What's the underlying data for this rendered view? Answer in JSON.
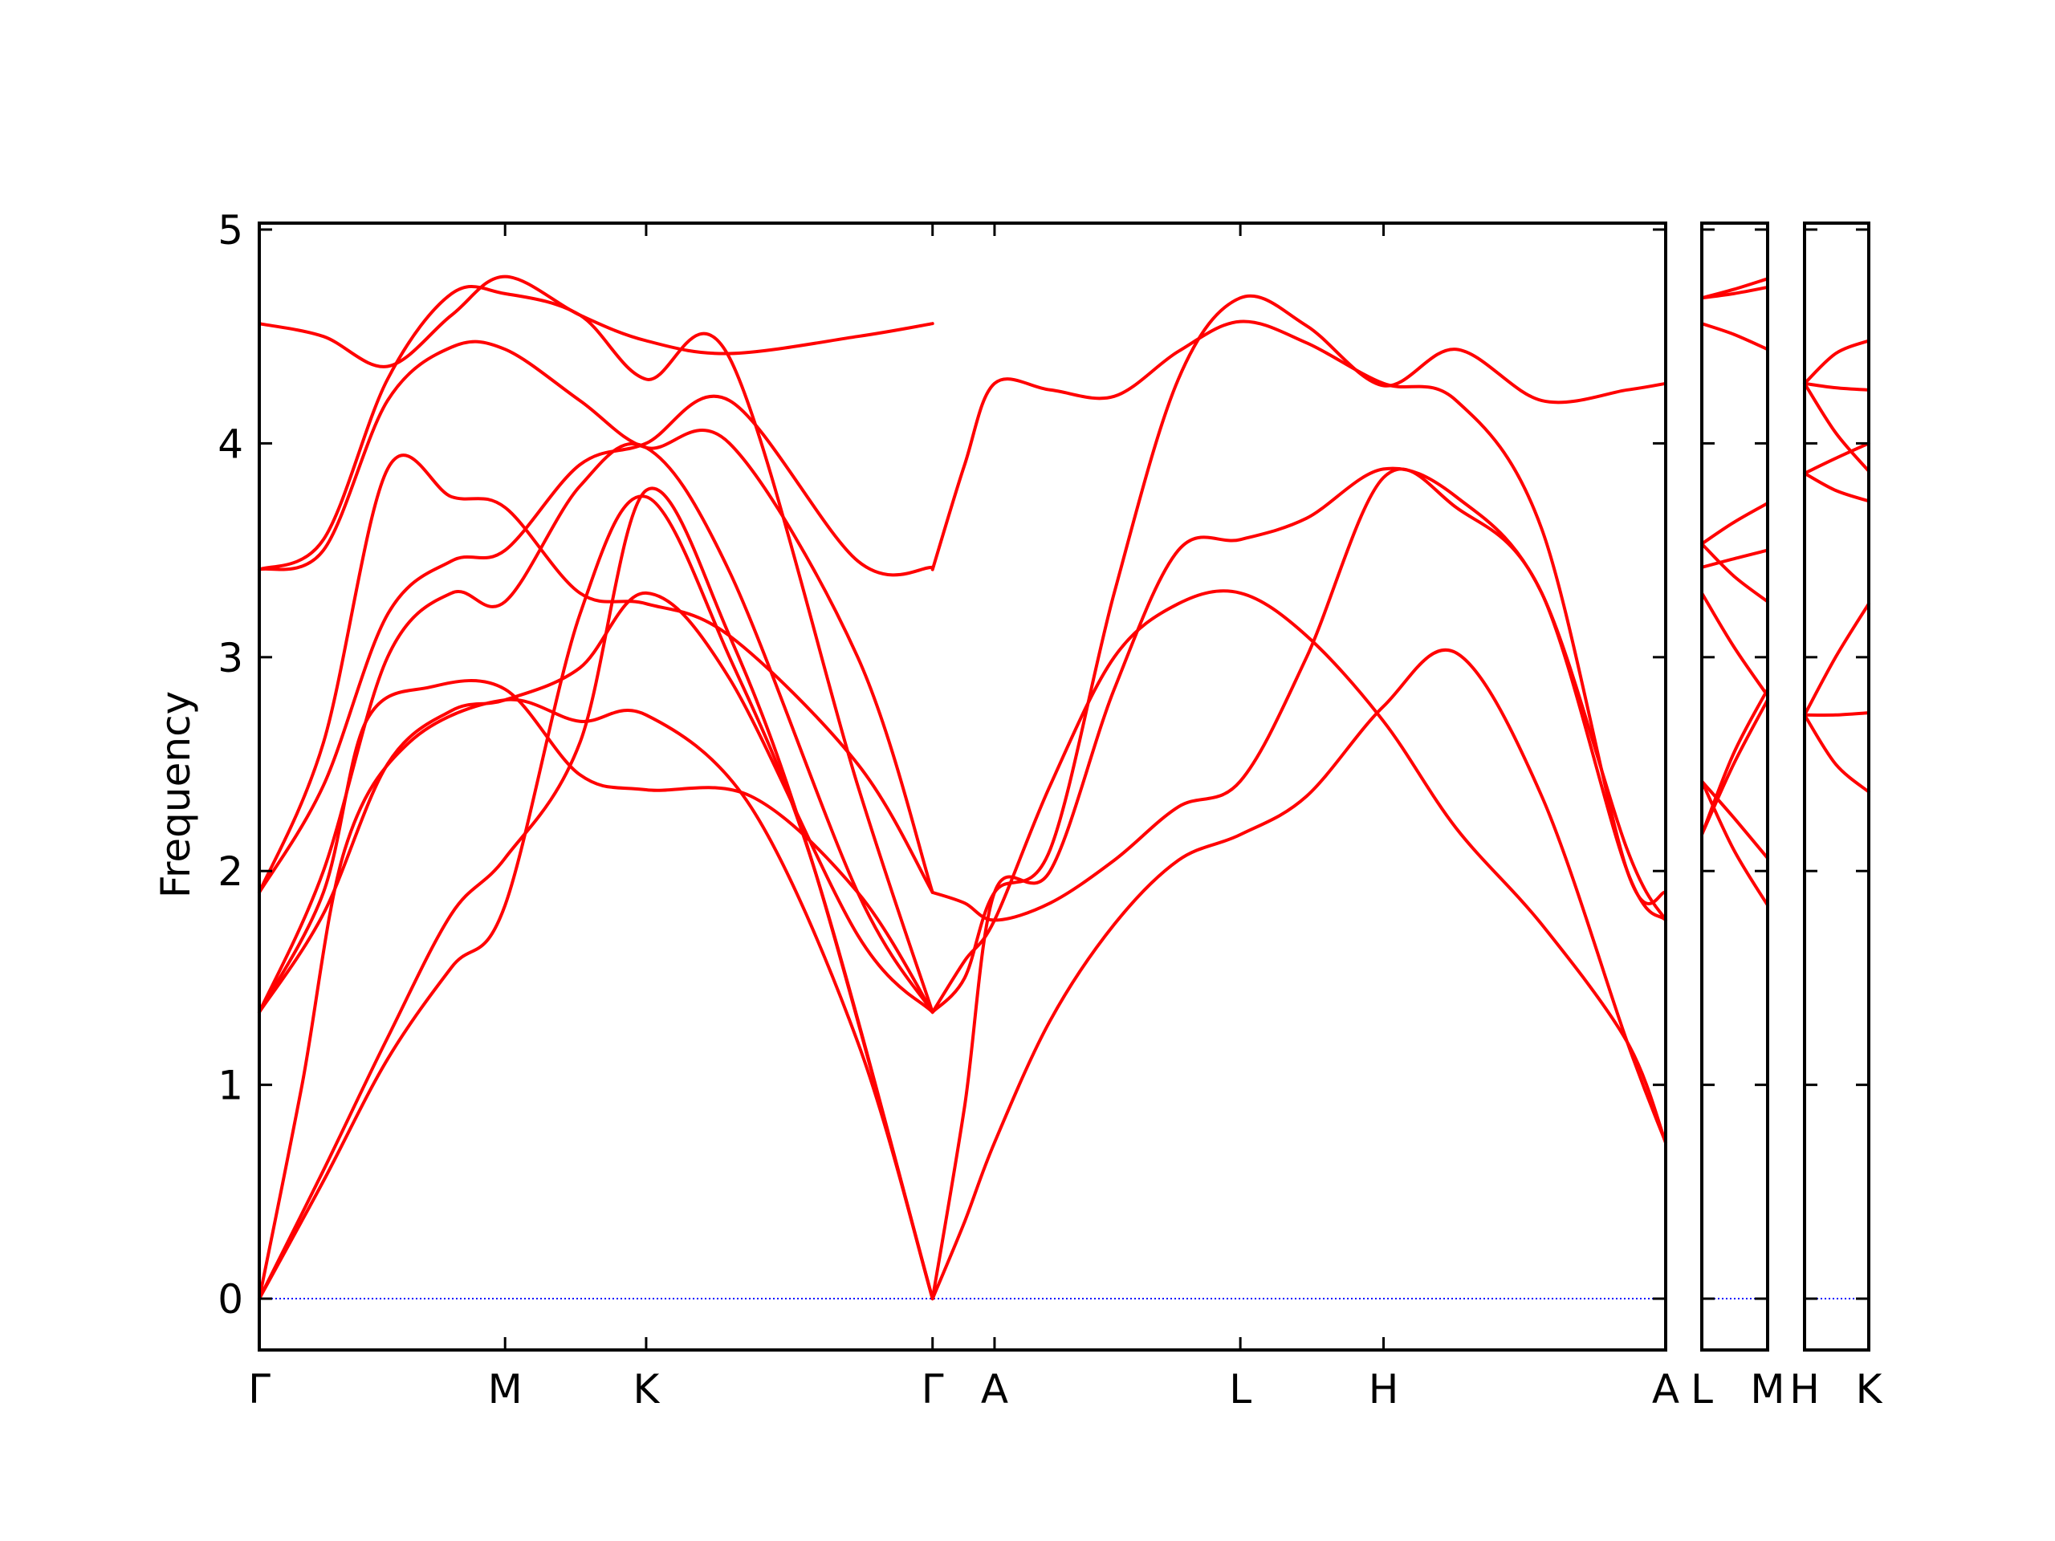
{
  "chart_data": {
    "type": "line",
    "ylabel": "Frequency",
    "ylim": [
      -0.24,
      5.03
    ],
    "grid": false,
    "y_ticks": [
      "0",
      "1",
      "2",
      "3",
      "4",
      "5"
    ],
    "zero_line_color": "#0000ff",
    "band_color": "#ff0000",
    "panels": [
      {
        "x_range": [
          0,
          6.58
        ],
        "ticks": [
          {
            "x": 0.0,
            "label": "Γ"
          },
          {
            "x": 1.15,
            "label": "M"
          },
          {
            "x": 1.81,
            "label": "K"
          },
          {
            "x": 3.15,
            "label": "Γ"
          },
          {
            "x": 3.44,
            "label": "A"
          },
          {
            "x": 4.59,
            "label": "L"
          },
          {
            "x": 5.26,
            "label": "H"
          },
          {
            "x": 6.58,
            "label": "A"
          }
        ],
        "bands": [
          [
            [
              0,
              0
            ],
            [
              0.3,
              0.55
            ],
            [
              0.6,
              1.12
            ],
            [
              0.9,
              1.55
            ],
            [
              1.15,
              1.84
            ],
            [
              1.5,
              3.2
            ],
            [
              1.81,
              3.75
            ],
            [
              2.2,
              3.0
            ],
            [
              2.6,
              2.0
            ],
            [
              3.15,
              0.0
            ]
          ],
          [
            [
              0,
              0
            ],
            [
              0.3,
              0.6
            ],
            [
              0.6,
              1.22
            ],
            [
              0.9,
              1.8
            ],
            [
              1.15,
              2.06
            ],
            [
              1.5,
              2.6
            ],
            [
              1.81,
              3.78
            ],
            [
              2.2,
              3.1
            ],
            [
              2.6,
              2.0
            ],
            [
              3.15,
              0.0
            ]
          ],
          [
            [
              0,
              0
            ],
            [
              0.2,
              1.0
            ],
            [
              0.4,
              2.1
            ],
            [
              0.7,
              2.6
            ],
            [
              1.15,
              2.8
            ],
            [
              1.5,
              2.7
            ],
            [
              1.81,
              2.73
            ],
            [
              2.3,
              2.3
            ],
            [
              2.8,
              1.2
            ],
            [
              3.15,
              0.0
            ]
          ],
          [
            [
              0,
              1.34
            ],
            [
              0.3,
              1.9
            ],
            [
              0.5,
              2.7
            ],
            [
              0.8,
              2.86
            ],
            [
              1.15,
              2.85
            ],
            [
              1.5,
              2.45
            ],
            [
              1.81,
              2.38
            ],
            [
              2.3,
              2.35
            ],
            [
              2.8,
              1.9
            ],
            [
              3.15,
              1.34
            ]
          ],
          [
            [
              0,
              1.34
            ],
            [
              0.3,
              1.8
            ],
            [
              0.6,
              2.5
            ],
            [
              0.9,
              2.75
            ],
            [
              1.15,
              2.8
            ],
            [
              1.5,
              2.95
            ],
            [
              1.81,
              3.3
            ],
            [
              2.2,
              2.9
            ],
            [
              2.8,
              1.7
            ],
            [
              3.15,
              1.34
            ]
          ],
          [
            [
              0,
              1.34
            ],
            [
              0.3,
              2.0
            ],
            [
              0.6,
              3.0
            ],
            [
              0.9,
              3.3
            ],
            [
              1.15,
              3.26
            ],
            [
              1.5,
              3.8
            ],
            [
              1.81,
              3.98
            ],
            [
              2.2,
              3.4
            ],
            [
              2.8,
              1.9
            ],
            [
              3.15,
              1.34
            ]
          ],
          [
            [
              0,
              1.9
            ],
            [
              0.3,
              2.4
            ],
            [
              0.6,
              3.2
            ],
            [
              0.9,
              3.45
            ],
            [
              1.15,
              3.5
            ],
            [
              1.5,
              3.9
            ],
            [
              1.81,
              4.0
            ],
            [
              2.2,
              4.2
            ],
            [
              2.8,
              3.45
            ],
            [
              3.15,
              3.42
            ]
          ],
          [
            [
              0,
              1.9
            ],
            [
              0.3,
              2.6
            ],
            [
              0.6,
              3.88
            ],
            [
              0.9,
              3.75
            ],
            [
              1.15,
              3.7
            ],
            [
              1.5,
              3.3
            ],
            [
              1.81,
              3.25
            ],
            [
              2.2,
              3.1
            ],
            [
              2.8,
              2.5
            ],
            [
              3.15,
              1.9
            ]
          ],
          [
            [
              0,
              3.41
            ],
            [
              0.3,
              3.5
            ],
            [
              0.6,
              4.2
            ],
            [
              0.9,
              4.45
            ],
            [
              1.15,
              4.44
            ],
            [
              1.5,
              4.2
            ],
            [
              1.81,
              3.98
            ],
            [
              2.2,
              4.0
            ],
            [
              2.8,
              3.0
            ],
            [
              3.15,
              1.9
            ]
          ],
          [
            [
              0,
              3.41
            ],
            [
              0.3,
              3.55
            ],
            [
              0.6,
              4.3
            ],
            [
              0.9,
              4.7
            ],
            [
              1.15,
              4.7
            ],
            [
              1.5,
              4.6
            ],
            [
              1.81,
              4.3
            ],
            [
              2.2,
              4.4
            ],
            [
              2.8,
              2.4
            ],
            [
              3.15,
              1.34
            ]
          ],
          [
            [
              0,
              4.56
            ],
            [
              0.3,
              4.5
            ],
            [
              0.6,
              4.36
            ],
            [
              0.9,
              4.6
            ],
            [
              1.15,
              4.78
            ],
            [
              1.5,
              4.6
            ],
            [
              1.81,
              4.48
            ],
            [
              2.2,
              4.42
            ],
            [
              2.8,
              4.5
            ],
            [
              3.15,
              4.56
            ]
          ],
          [
            [
              3.15,
              0.0
            ],
            [
              3.3,
              0.36
            ],
            [
              3.44,
              0.73
            ],
            [
              3.7,
              1.3
            ],
            [
              4.0,
              1.75
            ],
            [
              4.3,
              2.05
            ],
            [
              4.59,
              2.17
            ],
            [
              4.9,
              2.35
            ],
            [
              5.26,
              2.77
            ],
            [
              5.6,
              3.02
            ],
            [
              6.0,
              2.35
            ],
            [
              6.4,
              1.2
            ],
            [
              6.58,
              0.73
            ]
          ],
          [
            [
              3.15,
              0.0
            ],
            [
              3.3,
              0.9
            ],
            [
              3.44,
              1.9
            ],
            [
              3.7,
              2.0
            ],
            [
              4.0,
              2.85
            ],
            [
              4.3,
              3.5
            ],
            [
              4.59,
              3.55
            ],
            [
              4.9,
              3.65
            ],
            [
              5.26,
              3.88
            ],
            [
              5.6,
              3.75
            ],
            [
              6.0,
              3.3
            ],
            [
              6.4,
              2.1
            ],
            [
              6.58,
              1.77
            ]
          ],
          [
            [
              3.15,
              1.34
            ],
            [
              3.3,
              1.58
            ],
            [
              3.44,
              1.77
            ],
            [
              3.7,
              2.4
            ],
            [
              4.0,
              3.0
            ],
            [
              4.3,
              3.25
            ],
            [
              4.59,
              3.3
            ],
            [
              4.9,
              3.1
            ],
            [
              5.26,
              2.7
            ],
            [
              5.6,
              2.2
            ],
            [
              6.0,
              1.75
            ],
            [
              6.4,
              1.2
            ],
            [
              6.58,
              0.73
            ]
          ],
          [
            [
              3.15,
              1.9
            ],
            [
              3.3,
              1.85
            ],
            [
              3.44,
              1.77
            ],
            [
              3.7,
              1.85
            ],
            [
              4.0,
              2.05
            ],
            [
              4.3,
              2.3
            ],
            [
              4.59,
              2.42
            ],
            [
              4.9,
              3.0
            ],
            [
              5.26,
              3.84
            ],
            [
              5.6,
              3.7
            ],
            [
              6.0,
              3.3
            ],
            [
              6.4,
              2.0
            ],
            [
              6.58,
              1.77
            ]
          ],
          [
            [
              3.15,
              3.41
            ],
            [
              3.3,
              3.9
            ],
            [
              3.44,
              4.28
            ],
            [
              3.7,
              4.25
            ],
            [
              4.0,
              4.22
            ],
            [
              4.3,
              4.43
            ],
            [
              4.59,
              4.57
            ],
            [
              4.9,
              4.47
            ],
            [
              5.26,
              4.28
            ],
            [
              5.6,
              4.2
            ],
            [
              6.0,
              3.6
            ],
            [
              6.4,
              2.0
            ],
            [
              6.58,
              1.9
            ]
          ],
          [
            [
              3.15,
              1.34
            ],
            [
              3.3,
              1.5
            ],
            [
              3.44,
              1.9
            ],
            [
              3.7,
              2.1
            ],
            [
              4.0,
              3.3
            ],
            [
              4.3,
              4.3
            ],
            [
              4.59,
              4.68
            ],
            [
              4.9,
              4.55
            ],
            [
              5.26,
              4.27
            ],
            [
              5.6,
              4.44
            ],
            [
              6.0,
              4.2
            ],
            [
              6.4,
              4.25
            ],
            [
              6.58,
              4.28
            ]
          ]
        ]
      },
      {
        "x_range": [
          0,
          0.31
        ],
        "ticks": [
          {
            "x": 0.0,
            "label": "L"
          },
          {
            "x": 0.31,
            "label": "M"
          }
        ],
        "bands": [
          [
            [
              0,
              4.68
            ],
            [
              0.15,
              4.72
            ],
            [
              0.31,
              4.77
            ]
          ],
          [
            [
              0,
              4.68
            ],
            [
              0.15,
              4.7
            ],
            [
              0.31,
              4.73
            ]
          ],
          [
            [
              0,
              4.56
            ],
            [
              0.15,
              4.51
            ],
            [
              0.31,
              4.44
            ]
          ],
          [
            [
              0,
              3.53
            ],
            [
              0.15,
              3.63
            ],
            [
              0.31,
              3.72
            ]
          ],
          [
            [
              0,
              3.53
            ],
            [
              0.15,
              3.38
            ],
            [
              0.31,
              3.26
            ]
          ],
          [
            [
              0,
              3.42
            ],
            [
              0.15,
              3.46
            ],
            [
              0.31,
              3.5
            ]
          ],
          [
            [
              0,
              3.3
            ],
            [
              0.15,
              3.05
            ],
            [
              0.31,
              2.82
            ]
          ],
          [
            [
              0,
              2.42
            ],
            [
              0.15,
              2.25
            ],
            [
              0.31,
              2.06
            ]
          ],
          [
            [
              0,
              2.42
            ],
            [
              0.15,
              2.1
            ],
            [
              0.31,
              1.84
            ]
          ],
          [
            [
              0,
              2.17
            ],
            [
              0.15,
              2.5
            ],
            [
              0.31,
              2.8
            ]
          ],
          [
            [
              0,
              2.17
            ],
            [
              0.15,
              2.55
            ],
            [
              0.31,
              2.85
            ]
          ]
        ]
      },
      {
        "x_range": [
          0,
          0.31
        ],
        "ticks": [
          {
            "x": 0.0,
            "label": "H"
          },
          {
            "x": 0.31,
            "label": "K"
          }
        ],
        "bands": [
          [
            [
              0,
              4.28
            ],
            [
              0.15,
              4.42
            ],
            [
              0.31,
              4.48
            ]
          ],
          [
            [
              0,
              4.28
            ],
            [
              0.15,
              4.26
            ],
            [
              0.31,
              4.25
            ]
          ],
          [
            [
              0,
              4.28
            ],
            [
              0.15,
              4.05
            ],
            [
              0.31,
              3.87
            ]
          ],
          [
            [
              0,
              3.86
            ],
            [
              0.15,
              3.93
            ],
            [
              0.31,
              4.0
            ]
          ],
          [
            [
              0,
              3.86
            ],
            [
              0.15,
              3.78
            ],
            [
              0.31,
              3.73
            ]
          ],
          [
            [
              0,
              2.73
            ],
            [
              0.15,
              3.0
            ],
            [
              0.31,
              3.25
            ]
          ],
          [
            [
              0,
              2.73
            ],
            [
              0.15,
              2.73
            ],
            [
              0.31,
              2.74
            ]
          ],
          [
            [
              0,
              2.73
            ],
            [
              0.15,
              2.5
            ],
            [
              0.31,
              2.37
            ]
          ]
        ]
      }
    ]
  }
}
